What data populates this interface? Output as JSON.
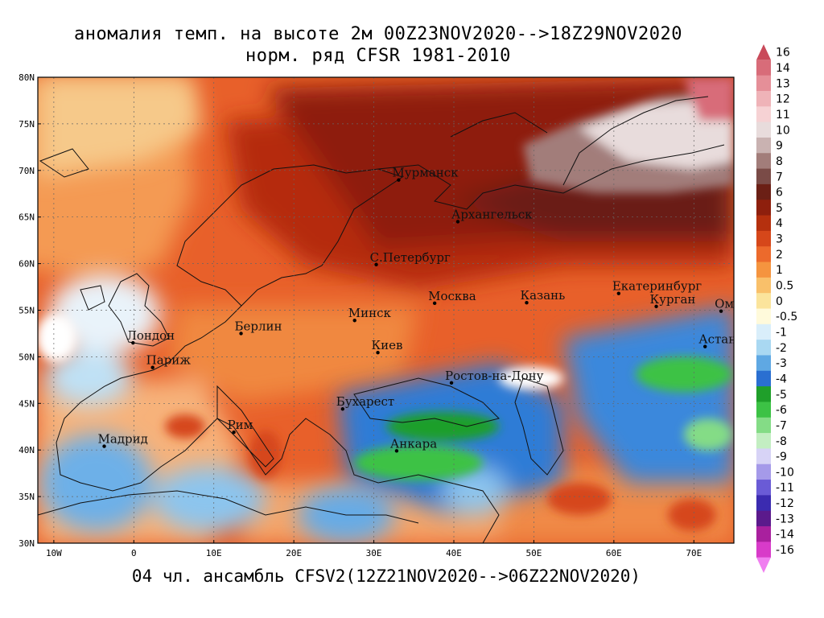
{
  "title_line1": "аномалия темп. на высоте 2м 00Z23NOV2020-->18Z29NOV2020",
  "title_line2": "норм. ряд CFSR 1981-2010",
  "footer": "04 чл. ансамбль CFSV2(12Z21NOV2020-->06Z22NOV2020)",
  "lat_labels": [
    {
      "text": "80N",
      "lat": 80
    },
    {
      "text": "75N",
      "lat": 75
    },
    {
      "text": "70N",
      "lat": 70
    },
    {
      "text": "65N",
      "lat": 65
    },
    {
      "text": "60N",
      "lat": 60
    },
    {
      "text": "55N",
      "lat": 55
    },
    {
      "text": "50N",
      "lat": 50
    },
    {
      "text": "45N",
      "lat": 45
    },
    {
      "text": "40N",
      "lat": 40
    },
    {
      "text": "35N",
      "lat": 35
    },
    {
      "text": "30N",
      "lat": 30
    }
  ],
  "lon_labels": [
    {
      "text": "10W",
      "lon": -10
    },
    {
      "text": "0",
      "lon": 0
    },
    {
      "text": "10E",
      "lon": 10
    },
    {
      "text": "20E",
      "lon": 20
    },
    {
      "text": "30E",
      "lon": 30
    },
    {
      "text": "40E",
      "lon": 40
    },
    {
      "text": "50E",
      "lon": 50
    },
    {
      "text": "60E",
      "lon": 60
    },
    {
      "text": "70E",
      "lon": 70
    }
  ],
  "cities": [
    {
      "name": "Мурманск",
      "lon": 33.1,
      "lat": 68.97
    },
    {
      "name": "Архангельск",
      "lon": 40.5,
      "lat": 64.5
    },
    {
      "name": "С.Петербург",
      "lon": 30.3,
      "lat": 59.9
    },
    {
      "name": "Москва",
      "lon": 37.6,
      "lat": 55.75
    },
    {
      "name": "Казань",
      "lon": 49.1,
      "lat": 55.8
    },
    {
      "name": "Екатеринбург",
      "lon": 60.6,
      "lat": 56.8
    },
    {
      "name": "Курган",
      "lon": 65.3,
      "lat": 55.4
    },
    {
      "name": "Омск",
      "lon": 73.4,
      "lat": 54.9
    },
    {
      "name": "Астана",
      "lon": 71.4,
      "lat": 51.1
    },
    {
      "name": "Минск",
      "lon": 27.6,
      "lat": 53.9
    },
    {
      "name": "Берлин",
      "lon": 13.4,
      "lat": 52.5
    },
    {
      "name": "Лондон",
      "lon": -0.1,
      "lat": 51.5
    },
    {
      "name": "Париж",
      "lon": 2.35,
      "lat": 48.85
    },
    {
      "name": "Киев",
      "lon": 30.5,
      "lat": 50.45
    },
    {
      "name": "Ростов-на-Дону",
      "lon": 39.7,
      "lat": 47.2
    },
    {
      "name": "Бухарест",
      "lon": 26.1,
      "lat": 44.4
    },
    {
      "name": "Рим",
      "lon": 12.5,
      "lat": 41.9
    },
    {
      "name": "Мадрид",
      "lon": -3.7,
      "lat": 40.4
    },
    {
      "name": "Анкара",
      "lon": 32.85,
      "lat": 39.9
    }
  ],
  "colorbar": {
    "labels": [
      "16",
      "14",
      "13",
      "12",
      "11",
      "10",
      "9",
      "8",
      "7",
      "6",
      "5",
      "4",
      "3",
      "2",
      "1",
      "0.5",
      "0",
      "-0.5",
      "-1",
      "-2",
      "-3",
      "-4",
      "-5",
      "-6",
      "-7",
      "-8",
      "-9",
      "-10",
      "-11",
      "-12",
      "-13",
      "-14",
      "-16"
    ],
    "colors": [
      "#c94a5a",
      "#d86c79",
      "#e58f98",
      "#efb3b8",
      "#f6d2d4",
      "#e8dcdc",
      "#c9b2b1",
      "#a27d7a",
      "#7a4b47",
      "#6b1f15",
      "#8e1f0d",
      "#b5300e",
      "#d6471a",
      "#ec6a2c",
      "#f5943f",
      "#f9c06a",
      "#fbe49c",
      "#fffadb",
      "#d9eefa",
      "#a9d8f2",
      "#5fa8e3",
      "#2a6fd1",
      "#1f9f2a",
      "#3cc245",
      "#84dc86",
      "#c3eec2",
      "#d7d3f6",
      "#a59ae9",
      "#6a5bd6",
      "#3b2bb0",
      "#5b1a8c",
      "#a9209e",
      "#d83bc9",
      "#f07ff0"
    ]
  },
  "map": {
    "lon_range": [
      -12,
      75
    ],
    "lat_range": [
      30,
      80
    ],
    "anomaly_regions": [
      {
        "value": 4,
        "desc": "Arctic Russia / Scandinavia warm"
      },
      {
        "value": 8,
        "desc": "Kara Sea / Yamal very warm"
      },
      {
        "value": -3,
        "desc": "Turkey / Black Sea / Kazakhstan cold"
      },
      {
        "value": -1,
        "desc": "Iberia / Algeria / W. Europe cool"
      }
    ]
  }
}
